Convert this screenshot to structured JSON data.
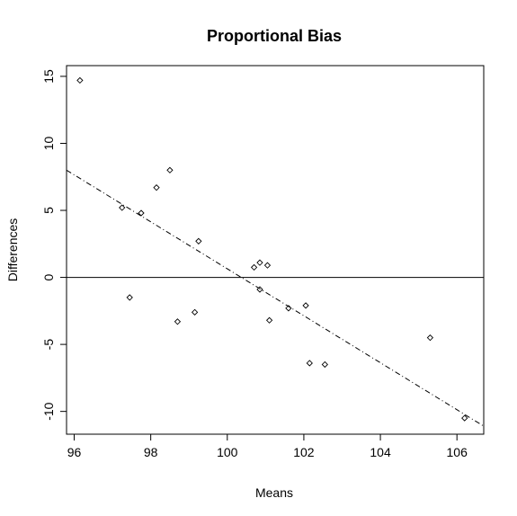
{
  "chart_data": {
    "type": "scatter",
    "title": "Proportional Bias",
    "xlabel": "Means",
    "ylabel": "Differences",
    "xlim": [
      95.8,
      106.7
    ],
    "ylim": [
      -11.7,
      15.8
    ],
    "x_ticks": [
      96,
      98,
      100,
      102,
      104,
      106
    ],
    "y_ticks": [
      -10,
      -5,
      0,
      5,
      10,
      15
    ],
    "grid": false,
    "points": [
      {
        "x": 96.15,
        "y": 14.7
      },
      {
        "x": 97.25,
        "y": 5.2
      },
      {
        "x": 97.45,
        "y": -1.5
      },
      {
        "x": 97.75,
        "y": 4.8
      },
      {
        "x": 98.15,
        "y": 6.7
      },
      {
        "x": 98.5,
        "y": 8.0
      },
      {
        "x": 98.7,
        "y": -3.3
      },
      {
        "x": 99.15,
        "y": -2.6
      },
      {
        "x": 99.25,
        "y": 2.7
      },
      {
        "x": 100.7,
        "y": 0.75
      },
      {
        "x": 100.85,
        "y": 1.1
      },
      {
        "x": 100.85,
        "y": -0.9
      },
      {
        "x": 101.05,
        "y": 0.9
      },
      {
        "x": 101.1,
        "y": -3.2
      },
      {
        "x": 101.6,
        "y": -2.3
      },
      {
        "x": 102.05,
        "y": -2.1
      },
      {
        "x": 102.15,
        "y": -6.4
      },
      {
        "x": 102.55,
        "y": -6.5
      },
      {
        "x": 105.3,
        "y": -4.5
      },
      {
        "x": 106.2,
        "y": -10.5
      }
    ],
    "reference_line": {
      "type": "horizontal",
      "y": 0,
      "style": "solid"
    },
    "trend_line": {
      "style": "dashdot",
      "points": [
        [
          95.8,
          8.0
        ],
        [
          106.7,
          -11.1
        ]
      ]
    }
  }
}
